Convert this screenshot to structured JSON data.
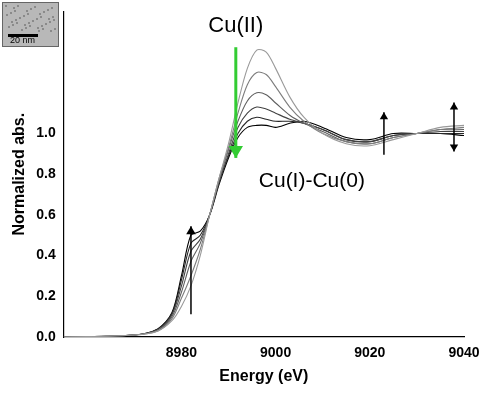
{
  "chart_data": {
    "type": "line",
    "x_label": "Energy (eV)",
    "y_label": "Normalized abs.",
    "annotations": [
      "Cu(II)",
      "Cu(I)-Cu(0)"
    ],
    "inset": {
      "scale_bar": "20 nm"
    },
    "x": [
      8955,
      8970,
      8975,
      8978,
      8980,
      8982,
      8984,
      8986,
      8988,
      8990,
      8992,
      8994,
      8996,
      8998,
      9000,
      9003,
      9006,
      9010,
      9015,
      9020,
      9025,
      9030,
      9035,
      9040
    ],
    "series": [
      {
        "color": "#9a9a9a",
        "values": [
          0.0,
          0.01,
          0.03,
          0.08,
          0.15,
          0.25,
          0.4,
          0.6,
          0.78,
          0.95,
          1.15,
          1.32,
          1.41,
          1.4,
          1.32,
          1.18,
          1.08,
          1.0,
          0.95,
          0.94,
          0.97,
          1.0,
          1.03,
          1.04
        ]
      },
      {
        "color": "#7d7d7d",
        "values": [
          0.0,
          0.01,
          0.03,
          0.09,
          0.19,
          0.3,
          0.43,
          0.6,
          0.78,
          0.93,
          1.1,
          1.24,
          1.3,
          1.29,
          1.23,
          1.13,
          1.06,
          1.0,
          0.96,
          0.95,
          0.98,
          1.0,
          1.02,
          1.03
        ]
      },
      {
        "color": "#5f5f5f",
        "values": [
          0.0,
          0.01,
          0.035,
          0.1,
          0.22,
          0.37,
          0.46,
          0.6,
          0.77,
          0.92,
          1.06,
          1.16,
          1.2,
          1.19,
          1.15,
          1.09,
          1.05,
          1.01,
          0.96,
          0.95,
          0.98,
          1.0,
          1.02,
          1.02
        ]
      },
      {
        "color": "#424242",
        "values": [
          0.0,
          0.01,
          0.035,
          0.11,
          0.25,
          0.42,
          0.48,
          0.6,
          0.76,
          0.9,
          1.03,
          1.1,
          1.13,
          1.12,
          1.1,
          1.07,
          1.05,
          1.02,
          0.97,
          0.96,
          0.99,
          1.0,
          1.01,
          1.01
        ]
      },
      {
        "color": "#262626",
        "values": [
          0.0,
          0.01,
          0.04,
          0.115,
          0.28,
          0.46,
          0.5,
          0.6,
          0.76,
          0.89,
          1.0,
          1.06,
          1.08,
          1.07,
          1.06,
          1.06,
          1.05,
          1.02,
          0.97,
          0.96,
          0.99,
          1.0,
          1.0,
          1.0
        ]
      },
      {
        "color": "#000000",
        "values": [
          0.0,
          0.01,
          0.04,
          0.12,
          0.3,
          0.5,
          0.52,
          0.6,
          0.75,
          0.88,
          0.98,
          1.03,
          1.04,
          1.04,
          1.03,
          1.05,
          1.06,
          1.03,
          0.98,
          0.97,
          1.0,
          1.0,
          1.0,
          0.99
        ]
      }
    ],
    "xlim": [
      8955,
      9040
    ],
    "xticks": [
      8980,
      9000,
      9020,
      9040
    ],
    "ylim": [
      0,
      1.6
    ],
    "yticks": [
      {
        "value": 0,
        "label": "0.0"
      },
      {
        "value": 0.2,
        "label": "0.2"
      },
      {
        "value": 0.4,
        "label": "0.4"
      },
      {
        "value": 0.6,
        "label": "0.6"
      },
      {
        "value": 0.8,
        "label": "0.8"
      },
      {
        "value": 1.0,
        "label": "1.0"
      }
    ],
    "grid": false
  }
}
